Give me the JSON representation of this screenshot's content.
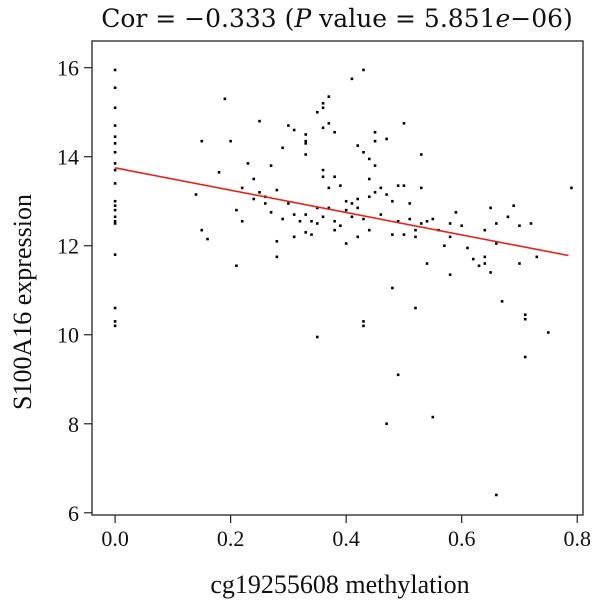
{
  "chart_data": {
    "type": "scatter",
    "title": "Cor = −0.333 (P value = 5.851e−06)",
    "title_parts": [
      "Cor = −0.333 (",
      "P",
      " value = 5.851",
      "e",
      "−06)"
    ],
    "xlabel": "cg19255608 methylation",
    "ylabel": "S100A16 expression",
    "xlim": [
      -0.04,
      0.81
    ],
    "ylim": [
      5.95,
      16.6
    ],
    "xticks": [
      0.0,
      0.2,
      0.4,
      0.6,
      0.8
    ],
    "xtick_labels": [
      "0.0",
      "0.2",
      "0.4",
      "0.6",
      "0.8"
    ],
    "yticks": [
      6,
      8,
      10,
      12,
      14,
      16
    ],
    "ytick_labels": [
      "6",
      "8",
      "10",
      "12",
      "14",
      "16"
    ],
    "grid": false,
    "legend": "none",
    "point_color": "#000000",
    "fit_line": {
      "color": "#e8221b",
      "x": [
        0.0,
        0.785
      ],
      "y": [
        13.75,
        11.78
      ]
    },
    "points": [
      [
        0.0,
        15.95
      ],
      [
        0.0,
        15.55
      ],
      [
        0.0,
        15.1
      ],
      [
        0.0,
        14.7
      ],
      [
        0.0,
        14.45
      ],
      [
        0.0,
        14.3
      ],
      [
        0.0,
        14.1
      ],
      [
        0.0,
        13.85
      ],
      [
        0.0,
        13.7
      ],
      [
        0.0,
        13.4
      ],
      [
        0.0,
        13.0
      ],
      [
        0.0,
        12.9
      ],
      [
        0.0,
        12.8
      ],
      [
        0.0,
        12.65
      ],
      [
        0.0,
        12.55
      ],
      [
        0.0,
        12.5
      ],
      [
        0.0,
        11.8
      ],
      [
        0.0,
        10.6
      ],
      [
        0.0,
        10.3
      ],
      [
        0.0,
        10.2
      ],
      [
        0.14,
        13.15
      ],
      [
        0.15,
        14.35
      ],
      [
        0.15,
        12.35
      ],
      [
        0.16,
        12.15
      ],
      [
        0.18,
        13.65
      ],
      [
        0.19,
        15.3
      ],
      [
        0.2,
        14.35
      ],
      [
        0.21,
        12.8
      ],
      [
        0.21,
        11.55
      ],
      [
        0.22,
        12.55
      ],
      [
        0.22,
        13.3
      ],
      [
        0.23,
        13.85
      ],
      [
        0.24,
        13.5
      ],
      [
        0.24,
        13.05
      ],
      [
        0.25,
        14.8
      ],
      [
        0.25,
        13.2
      ],
      [
        0.26,
        12.95
      ],
      [
        0.26,
        13.1
      ],
      [
        0.27,
        12.75
      ],
      [
        0.27,
        13.8
      ],
      [
        0.28,
        13.25
      ],
      [
        0.28,
        12.1
      ],
      [
        0.28,
        11.75
      ],
      [
        0.29,
        14.2
      ],
      [
        0.29,
        12.6
      ],
      [
        0.3,
        14.7
      ],
      [
        0.3,
        12.95
      ],
      [
        0.31,
        14.6
      ],
      [
        0.31,
        12.7
      ],
      [
        0.31,
        12.2
      ],
      [
        0.32,
        12.55
      ],
      [
        0.33,
        14.5
      ],
      [
        0.33,
        14.35
      ],
      [
        0.33,
        14.3
      ],
      [
        0.33,
        14.05
      ],
      [
        0.33,
        12.7
      ],
      [
        0.33,
        12.3
      ],
      [
        0.34,
        12.55
      ],
      [
        0.34,
        12.25
      ],
      [
        0.35,
        15.0
      ],
      [
        0.35,
        12.85
      ],
      [
        0.35,
        12.5
      ],
      [
        0.35,
        9.95
      ],
      [
        0.36,
        15.2
      ],
      [
        0.36,
        15.1
      ],
      [
        0.36,
        14.65
      ],
      [
        0.36,
        13.7
      ],
      [
        0.36,
        13.55
      ],
      [
        0.36,
        12.65
      ],
      [
        0.37,
        15.35
      ],
      [
        0.37,
        14.75
      ],
      [
        0.37,
        13.3
      ],
      [
        0.37,
        12.85
      ],
      [
        0.38,
        13.55
      ],
      [
        0.38,
        12.55
      ],
      [
        0.38,
        14.55
      ],
      [
        0.38,
        12.35
      ],
      [
        0.39,
        13.35
      ],
      [
        0.39,
        12.45
      ],
      [
        0.4,
        13.0
      ],
      [
        0.4,
        12.8
      ],
      [
        0.4,
        12.05
      ],
      [
        0.41,
        15.75
      ],
      [
        0.41,
        12.95
      ],
      [
        0.41,
        12.65
      ],
      [
        0.42,
        14.25
      ],
      [
        0.42,
        13.05
      ],
      [
        0.42,
        12.85
      ],
      [
        0.42,
        12.2
      ],
      [
        0.43,
        15.95
      ],
      [
        0.43,
        14.1
      ],
      [
        0.43,
        12.6
      ],
      [
        0.43,
        10.3
      ],
      [
        0.43,
        10.2
      ],
      [
        0.44,
        13.95
      ],
      [
        0.44,
        13.5
      ],
      [
        0.44,
        13.1
      ],
      [
        0.44,
        12.35
      ],
      [
        0.45,
        14.55
      ],
      [
        0.45,
        14.35
      ],
      [
        0.45,
        13.8
      ],
      [
        0.45,
        13.2
      ],
      [
        0.46,
        13.3
      ],
      [
        0.46,
        12.7
      ],
      [
        0.47,
        8.0
      ],
      [
        0.47,
        14.4
      ],
      [
        0.47,
        13.15
      ],
      [
        0.48,
        12.25
      ],
      [
        0.48,
        13.0
      ],
      [
        0.49,
        13.35
      ],
      [
        0.49,
        12.55
      ],
      [
        0.49,
        9.1
      ],
      [
        0.5,
        14.75
      ],
      [
        0.5,
        13.35
      ],
      [
        0.5,
        12.25
      ],
      [
        0.51,
        12.95
      ],
      [
        0.51,
        12.6
      ],
      [
        0.52,
        12.35
      ],
      [
        0.52,
        12.2
      ],
      [
        0.53,
        14.05
      ],
      [
        0.53,
        13.3
      ],
      [
        0.53,
        12.5
      ],
      [
        0.54,
        12.55
      ],
      [
        0.54,
        11.6
      ],
      [
        0.55,
        12.6
      ],
      [
        0.55,
        8.15
      ],
      [
        0.56,
        12.35
      ],
      [
        0.57,
        12.0
      ],
      [
        0.58,
        12.2
      ],
      [
        0.58,
        11.35
      ],
      [
        0.59,
        12.75
      ],
      [
        0.6,
        12.45
      ],
      [
        0.61,
        11.95
      ],
      [
        0.62,
        11.7
      ],
      [
        0.63,
        11.55
      ],
      [
        0.64,
        12.35
      ],
      [
        0.64,
        11.75
      ],
      [
        0.65,
        12.85
      ],
      [
        0.65,
        11.4
      ],
      [
        0.66,
        12.5
      ],
      [
        0.66,
        6.4
      ],
      [
        0.67,
        10.75
      ],
      [
        0.68,
        12.65
      ],
      [
        0.69,
        12.9
      ],
      [
        0.7,
        11.6
      ],
      [
        0.71,
        10.45
      ],
      [
        0.71,
        10.35
      ],
      [
        0.71,
        9.5
      ],
      [
        0.72,
        12.5
      ],
      [
        0.73,
        11.75
      ],
      [
        0.75,
        10.05
      ],
      [
        0.79,
        13.3
      ],
      [
        0.52,
        10.6
      ],
      [
        0.48,
        11.05
      ],
      [
        0.66,
        12.05
      ],
      [
        0.64,
        11.6
      ],
      [
        0.58,
        12.5
      ],
      [
        0.7,
        12.45
      ]
    ]
  }
}
